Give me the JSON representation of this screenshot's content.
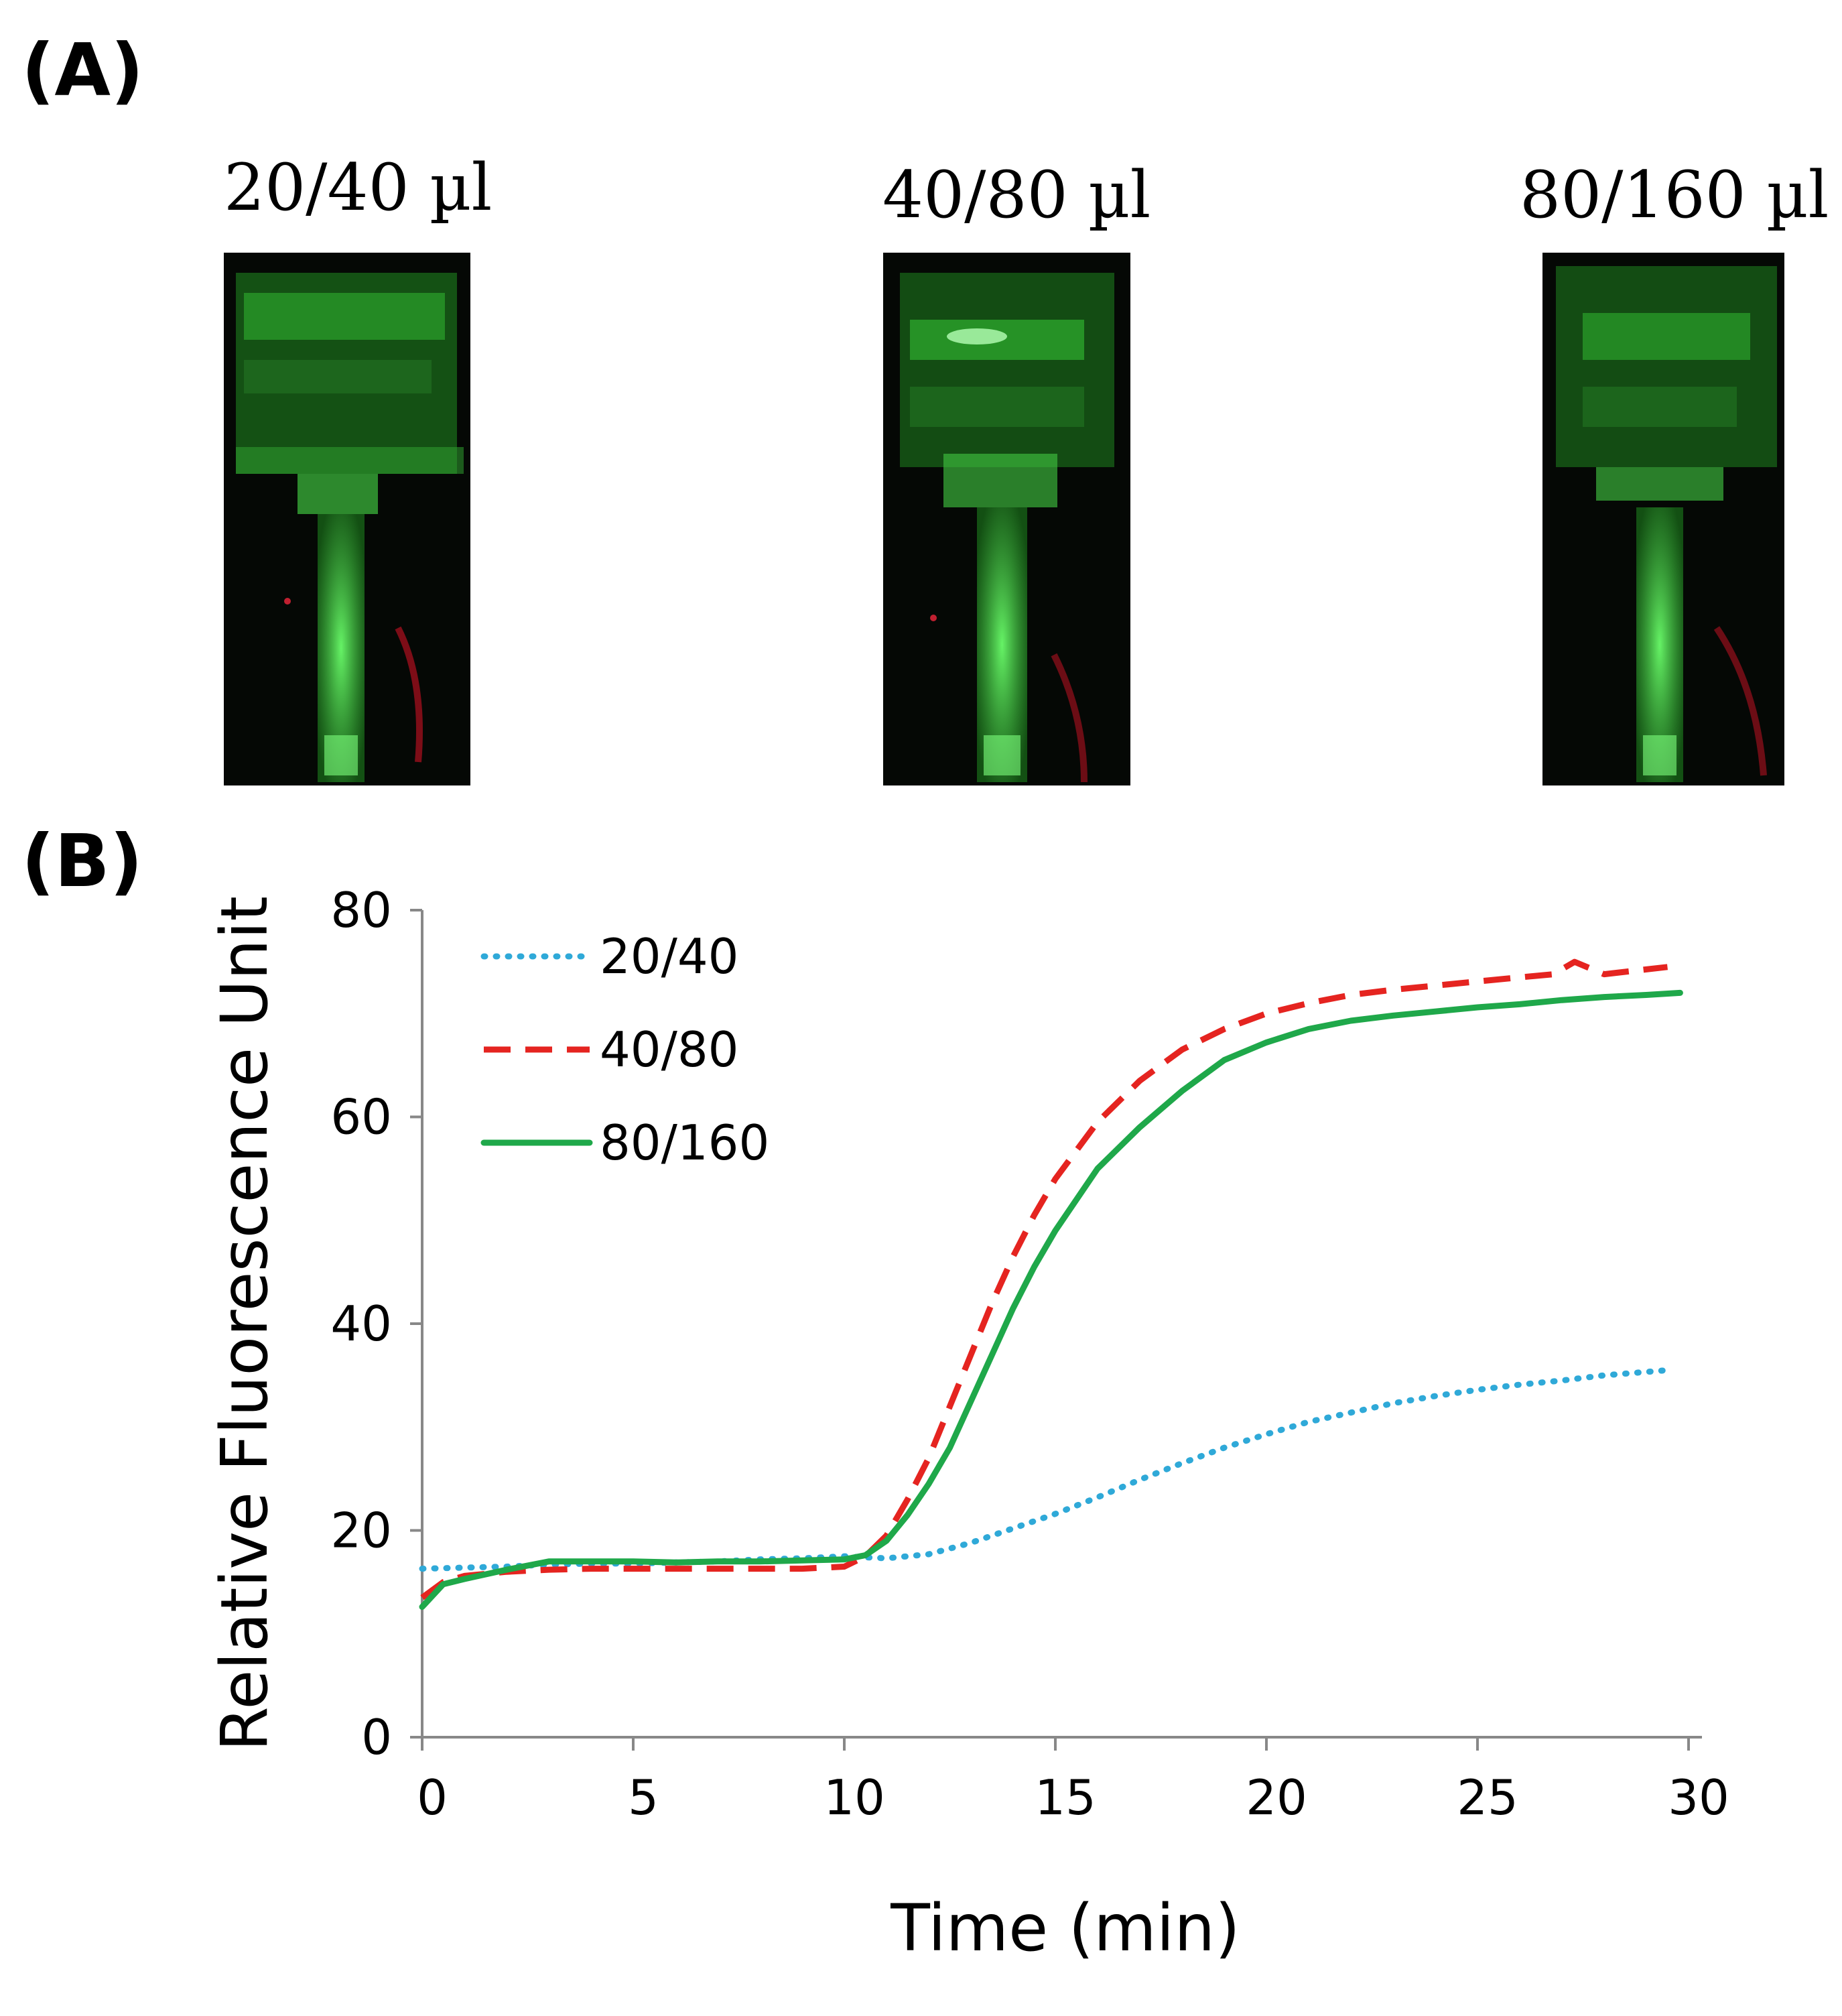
{
  "panels": {
    "a_label": "(A)",
    "b_label": "(B)"
  },
  "photos": [
    {
      "label": "20/40 µl",
      "glow": "#3cd23c"
    },
    {
      "label": "40/80 µl",
      "glow": "#3cd23c"
    },
    {
      "label": "80/160 µl",
      "glow": "#3cd23c"
    }
  ],
  "chart_data": {
    "type": "line",
    "title": "",
    "xlabel": "Time (min)",
    "ylabel": "Relative Fluorescence Unit",
    "xlim": [
      0,
      30
    ],
    "ylim": [
      0,
      80
    ],
    "xticks": [
      "0",
      "5",
      "10",
      "15",
      "20",
      "25",
      "30"
    ],
    "yticks": [
      "0",
      "20",
      "40",
      "60",
      "80"
    ],
    "grid": false,
    "legend_position": "top-left",
    "series": [
      {
        "name": "20/40",
        "color": "#2fa9d8",
        "style": "dotted",
        "x": [
          0,
          1,
          2,
          3,
          4,
          5,
          6,
          7,
          8,
          9,
          10,
          11,
          12,
          13,
          14,
          15,
          16,
          17,
          18,
          19,
          20,
          21,
          22,
          23,
          24,
          25,
          26,
          27,
          28,
          29.5
        ],
        "y": [
          16.3,
          16.4,
          16.5,
          16.7,
          16.8,
          16.8,
          16.9,
          17.0,
          17.2,
          17.3,
          17.5,
          17.3,
          17.7,
          18.8,
          20.2,
          21.6,
          23.2,
          24.9,
          26.5,
          28.0,
          29.3,
          30.5,
          31.4,
          32.3,
          33.0,
          33.6,
          34.1,
          34.5,
          35.0,
          35.5
        ]
      },
      {
        "name": "40/80",
        "color": "#e52420",
        "style": "dashed",
        "x": [
          0,
          0.5,
          1,
          2,
          3,
          4,
          5,
          6,
          7,
          8,
          9,
          10,
          10.5,
          11,
          11.5,
          12,
          12.5,
          13,
          13.5,
          14,
          14.5,
          15,
          16,
          17,
          18,
          19,
          20,
          21,
          22,
          23,
          24,
          25,
          26,
          26.8,
          27.3,
          28,
          29.5
        ],
        "y": [
          13.5,
          15.0,
          15.6,
          16.0,
          16.2,
          16.3,
          16.3,
          16.3,
          16.3,
          16.3,
          16.3,
          16.5,
          17.5,
          19.5,
          23,
          27,
          32,
          37,
          42,
          46.5,
          50.5,
          54,
          59.5,
          63.5,
          66.5,
          68.5,
          70,
          71,
          71.8,
          72.3,
          72.7,
          73.1,
          73.5,
          73.8,
          75.0,
          73.8,
          74.5
        ]
      },
      {
        "name": "80/160",
        "color": "#1fa84a",
        "style": "solid",
        "x": [
          0,
          0.5,
          1,
          2,
          3,
          4,
          5,
          6,
          7,
          8,
          9,
          10,
          10.5,
          11,
          11.5,
          12,
          12.5,
          13,
          13.5,
          14,
          14.5,
          15,
          16,
          17,
          18,
          19,
          20,
          21,
          22,
          23,
          24,
          25,
          26,
          27,
          28,
          29,
          29.8
        ],
        "y": [
          12.6,
          14.8,
          15.3,
          16.2,
          17.0,
          17.0,
          17.0,
          16.9,
          17.0,
          17.0,
          17.1,
          17.2,
          17.6,
          19.0,
          21.5,
          24.5,
          28,
          32.5,
          37,
          41.5,
          45.5,
          49,
          55,
          59,
          62.5,
          65.5,
          67.2,
          68.5,
          69.3,
          69.8,
          70.2,
          70.6,
          70.9,
          71.3,
          71.6,
          71.8,
          72.0
        ]
      }
    ]
  }
}
